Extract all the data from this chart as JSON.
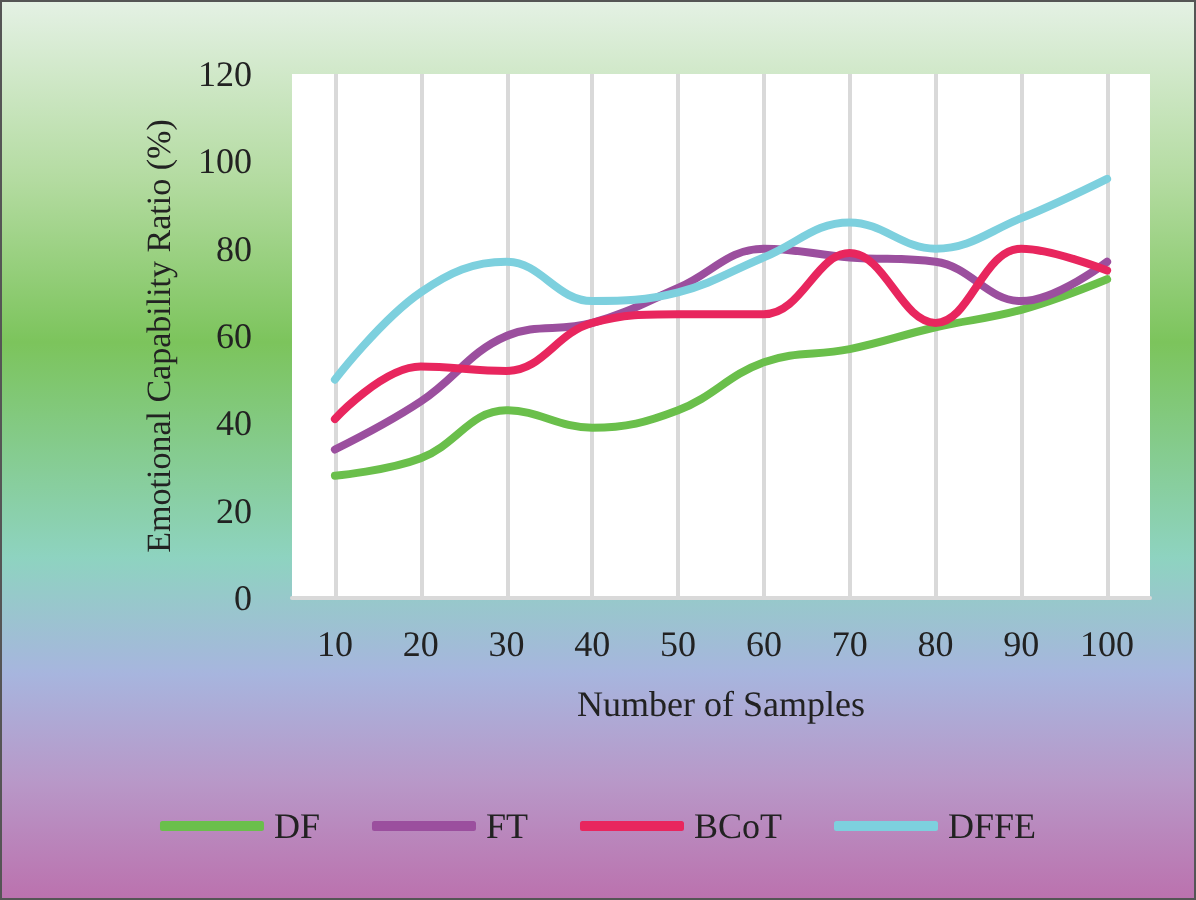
{
  "chart_data": {
    "type": "line",
    "xlabel": "Number of Samples",
    "ylabel": "Emotional Capability Ratio (%)",
    "categories": [
      "10",
      "20",
      "30",
      "40",
      "50",
      "60",
      "70",
      "80",
      "90",
      "100"
    ],
    "series": [
      {
        "name": "DF",
        "color": "#6abf4b",
        "values": [
          28,
          32,
          43,
          39,
          43,
          54,
          57,
          62,
          66,
          73
        ]
      },
      {
        "name": "FT",
        "color": "#9b4f9e",
        "values": [
          34,
          45,
          60,
          63,
          71,
          80,
          78,
          77,
          68,
          77
        ]
      },
      {
        "name": "BCoT",
        "color": "#e8265e",
        "values": [
          41,
          53,
          52,
          63,
          65,
          65,
          79,
          63,
          80,
          75
        ]
      },
      {
        "name": "DFFE",
        "color": "#7dd0de",
        "values": [
          50,
          70,
          77,
          68,
          70,
          78,
          86,
          80,
          87,
          96
        ]
      }
    ],
    "ylim": [
      0,
      120
    ],
    "yticks": [
      0,
      20,
      40,
      60,
      80,
      100,
      120
    ],
    "grid": "x",
    "legend": "bottom",
    "marker": "none",
    "line_style": "solid"
  }
}
